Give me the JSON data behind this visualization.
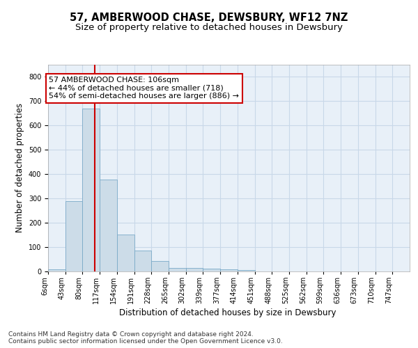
{
  "title": "57, AMBERWOOD CHASE, DEWSBURY, WF12 7NZ",
  "subtitle": "Size of property relative to detached houses in Dewsbury",
  "xlabel": "Distribution of detached houses by size in Dewsbury",
  "ylabel": "Number of detached properties",
  "bin_labels": [
    "6sqm",
    "43sqm",
    "80sqm",
    "117sqm",
    "154sqm",
    "191sqm",
    "228sqm",
    "265sqm",
    "302sqm",
    "339sqm",
    "377sqm",
    "414sqm",
    "451sqm",
    "488sqm",
    "525sqm",
    "562sqm",
    "599sqm",
    "636sqm",
    "673sqm",
    "710sqm",
    "747sqm"
  ],
  "bar_heights": [
    8,
    288,
    668,
    378,
    152,
    87,
    43,
    14,
    14,
    11,
    8,
    5,
    0,
    0,
    0,
    0,
    0,
    0,
    0,
    0,
    0
  ],
  "bar_color": "#ccdce8",
  "bar_edge_color": "#7aaac8",
  "grid_color": "#c8d8e8",
  "background_color": "#e8f0f8",
  "vline_x": 2,
  "vline_color": "#cc0000",
  "annotation_text": "57 AMBERWOOD CHASE: 106sqm\n← 44% of detached houses are smaller (718)\n54% of semi-detached houses are larger (886) →",
  "annotation_box_color": "#ffffff",
  "annotation_box_edge": "#cc0000",
  "ylim": [
    0,
    850
  ],
  "num_bins": 21,
  "footer_text": "Contains HM Land Registry data © Crown copyright and database right 2024.\nContains public sector information licensed under the Open Government Licence v3.0.",
  "title_fontsize": 10.5,
  "subtitle_fontsize": 9.5,
  "ylabel_fontsize": 8.5,
  "xlabel_fontsize": 8.5,
  "tick_fontsize": 7,
  "annotation_fontsize": 8,
  "footer_fontsize": 6.5
}
